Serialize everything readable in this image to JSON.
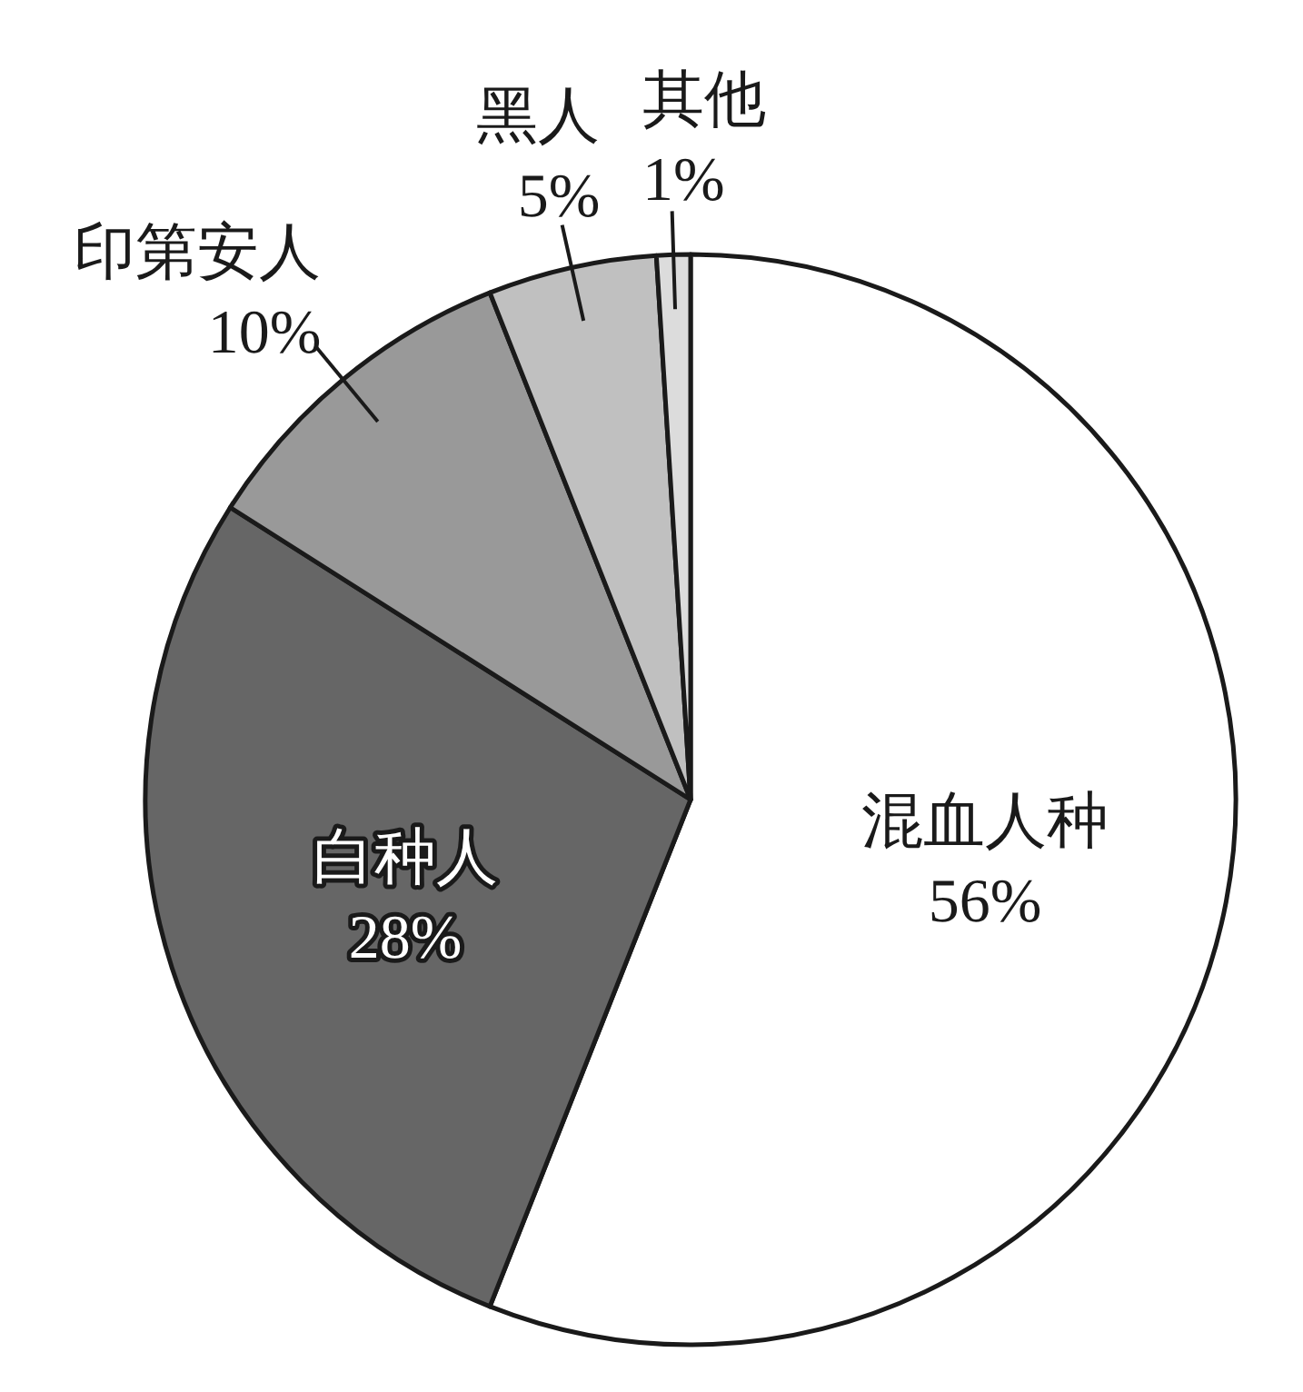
{
  "chart_data": {
    "type": "pie",
    "categories": [
      "混血人种",
      "白种人",
      "印第安人",
      "黑人",
      "其他"
    ],
    "values": [
      56,
      28,
      10,
      5,
      1
    ],
    "value_labels": [
      "56%",
      "28%",
      "10%",
      "5%",
      "1%"
    ],
    "colors": [
      "#ffffff",
      "#666666",
      "#999999",
      "#c0c0c0",
      "#dcdcdc"
    ]
  }
}
